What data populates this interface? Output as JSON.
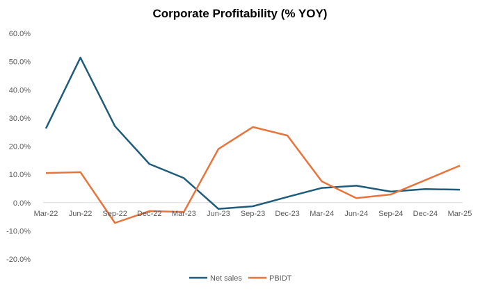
{
  "chart_data": {
    "type": "line",
    "title": "Corporate Profitability (% YOY)",
    "categories": [
      "Mar-22",
      "Jun-22",
      "Sep-22",
      "Dec-22",
      "Mar-23",
      "Jun-23",
      "Sep-23",
      "Dec-23",
      "Mar-24",
      "Jun-24",
      "Sep-24",
      "Dec-24",
      "Mar-25"
    ],
    "series": [
      {
        "name": "Net sales",
        "color": "#1F5C7A",
        "values": [
          26.3,
          51.4,
          27.1,
          13.7,
          8.7,
          -2.2,
          -1.3,
          2.0,
          5.2,
          6.0,
          3.9,
          4.8,
          4.6
        ]
      },
      {
        "name": "PBIDT",
        "color": "#E8743B",
        "values": [
          10.5,
          10.8,
          -7.2,
          -3.0,
          -3.3,
          19.0,
          26.8,
          23.8,
          7.5,
          1.6,
          2.9,
          8.0,
          13.1
        ]
      }
    ],
    "y_ticks": [
      "60.0%",
      "50.0%",
      "40.0%",
      "30.0%",
      "20.0%",
      "10.0%",
      "0.0%",
      "-10.0%",
      "-20.0%"
    ],
    "ylim": [
      -20,
      60
    ],
    "grid": false,
    "legend": "bottom"
  }
}
